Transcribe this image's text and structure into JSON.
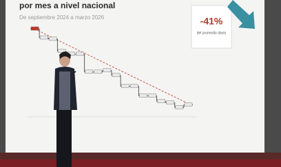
{
  "slide": {
    "title": "por mes a nivel nacional",
    "subtitle": "De septiembre 2024 a marzo 2026",
    "callout": {
      "value": "-41%",
      "caption": "del promedio diario"
    },
    "steps": [
      86.9,
      82.7,
      82.1,
      76.3,
      75.0,
      75.0,
      66.6,
      66.6,
      67.3,
      65.0,
      59.9,
      59.9,
      55.4,
      55.4,
      52.8,
      52.2,
      49.9,
      51.2
    ]
  }
}
